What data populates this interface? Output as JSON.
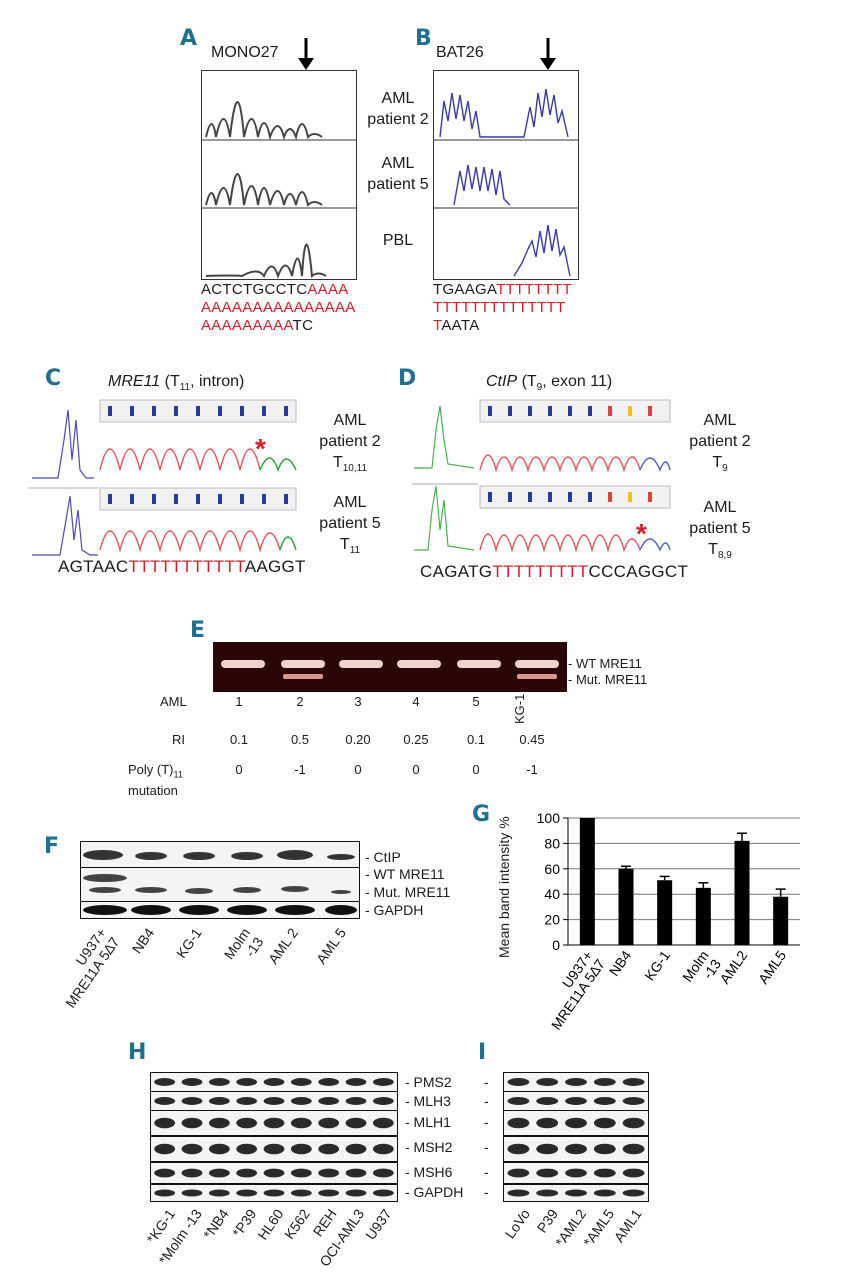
{
  "panels": {
    "A": "A",
    "B": "B",
    "C": "C",
    "D": "D",
    "E": "E",
    "F": "F",
    "G": "G",
    "H": "H",
    "I": "I"
  },
  "panel_a": {
    "marker": "MONO27",
    "rows": [
      {
        "line1": "AML",
        "line2": "patient 2"
      },
      {
        "line1": "AML",
        "line2": "patient 5"
      },
      {
        "line1": "PBL",
        "line2": ""
      }
    ],
    "seq": {
      "l1_black": "ACTCTGCCTC",
      "l1_red": "AAAA",
      "l2_red": "AAAAAAAAAAAAAAA",
      "l3_red": "AAAAAAAAA",
      "l3_black": "TC"
    }
  },
  "panel_b": {
    "marker": "BAT26",
    "seq": {
      "l1_black": "TGAAGA",
      "l1_red": "TTTTTTTT",
      "l2_red": "TTTTTTTTTTTTTT",
      "l3_red": "T",
      "l3_black": "AATA"
    }
  },
  "panel_c": {
    "gene": "MRE11",
    "desc_open": " (T",
    "desc_sub": "11",
    "desc_close": ", intron)",
    "row1": {
      "line1": "AML",
      "line2": "patient 2",
      "line3": "T",
      "sub": "10,11"
    },
    "row2": {
      "line1": "AML",
      "line2": "patient 5",
      "line3": "T",
      "sub": "11"
    },
    "star": "*",
    "seq": {
      "black1": "AGTAAC",
      "red": "TTTTTTTTTTT",
      "black2": "AAGGT"
    }
  },
  "panel_d": {
    "gene": "CtIP",
    "desc_open": " (T",
    "desc_sub": "9",
    "desc_close": ", exon 11)",
    "row1": {
      "line1": "AML",
      "line2": "patient 2",
      "line3": "T",
      "sub": "9"
    },
    "row2": {
      "line1": "AML",
      "line2": "patient 5",
      "line3": "T",
      "sub": "8,9"
    },
    "star": "*",
    "seq": {
      "black1": "CAGATG",
      "red": "TTTTTTTTT",
      "black2": "CCCAGGCT"
    }
  },
  "panel_e": {
    "band_labels": [
      "- WT MRE11",
      "- Mut. MRE11"
    ],
    "row_headers": {
      "aml": "AML",
      "ri": "RI",
      "poly_open": "Poly (T)",
      "poly_sub": "11",
      "poly_line2": "mutation"
    },
    "lanes": [
      "1",
      "2",
      "3",
      "4",
      "5",
      "KG-1"
    ],
    "ri": [
      "0.1",
      "0.5",
      "0.20",
      "0.25",
      "0.1",
      "0.45"
    ],
    "poly": [
      "0",
      "-1",
      "0",
      "0",
      "0",
      "-1"
    ]
  },
  "panel_f": {
    "band_labels": [
      "- CtIP",
      "- WT MRE11",
      "- Mut. MRE11",
      "- GAPDH"
    ],
    "lanes": [
      {
        "line1": "U937+",
        "line2": "MRE11A 5∆7"
      },
      {
        "line1": "NB4",
        "line2": ""
      },
      {
        "line1": "KG-1",
        "line2": ""
      },
      {
        "line1": "Molm",
        "line2": "-13"
      },
      {
        "line1": "AML 2",
        "line2": ""
      },
      {
        "line1": "AML 5",
        "line2": ""
      }
    ]
  },
  "chart_data": {
    "type": "bar",
    "title": "",
    "xlabel": "",
    "ylabel": "Mean band intensity %",
    "ylim": [
      0,
      100
    ],
    "yticks": [
      "0",
      "20",
      "40",
      "60",
      "80",
      "100"
    ],
    "categories": [
      "U937+ MRE11A 5∆7",
      "NB4",
      "KG-1",
      "Molm -13",
      "AML2",
      "AML5"
    ],
    "category_labels": [
      {
        "line1": "U937+",
        "line2": "MRE11A 5∆7"
      },
      {
        "line1": "NB4",
        "line2": ""
      },
      {
        "line1": "KG-1",
        "line2": ""
      },
      {
        "line1": "Molm",
        "line2": "-13"
      },
      {
        "line1": "AML2",
        "line2": ""
      },
      {
        "line1": "AML5",
        "line2": ""
      }
    ],
    "values": [
      100,
      60,
      51,
      45,
      82,
      38
    ],
    "errors": [
      0,
      2,
      3,
      4,
      6,
      6
    ],
    "grid": true
  },
  "panel_h": {
    "band_labels": [
      "- PMS2",
      "- MLH3",
      "- MLH1",
      "- MSH2",
      "- MSH6",
      "- GAPDH"
    ],
    "lanes": [
      "*KG-1",
      "*Molm -13",
      "*NB4",
      "*P39",
      "HL60",
      "K562",
      "REH",
      "OCI-AML3",
      "U937"
    ]
  },
  "panel_i": {
    "lanes": [
      "LoVo",
      "P39",
      "*AML2",
      "*AML5",
      "AML1"
    ]
  }
}
